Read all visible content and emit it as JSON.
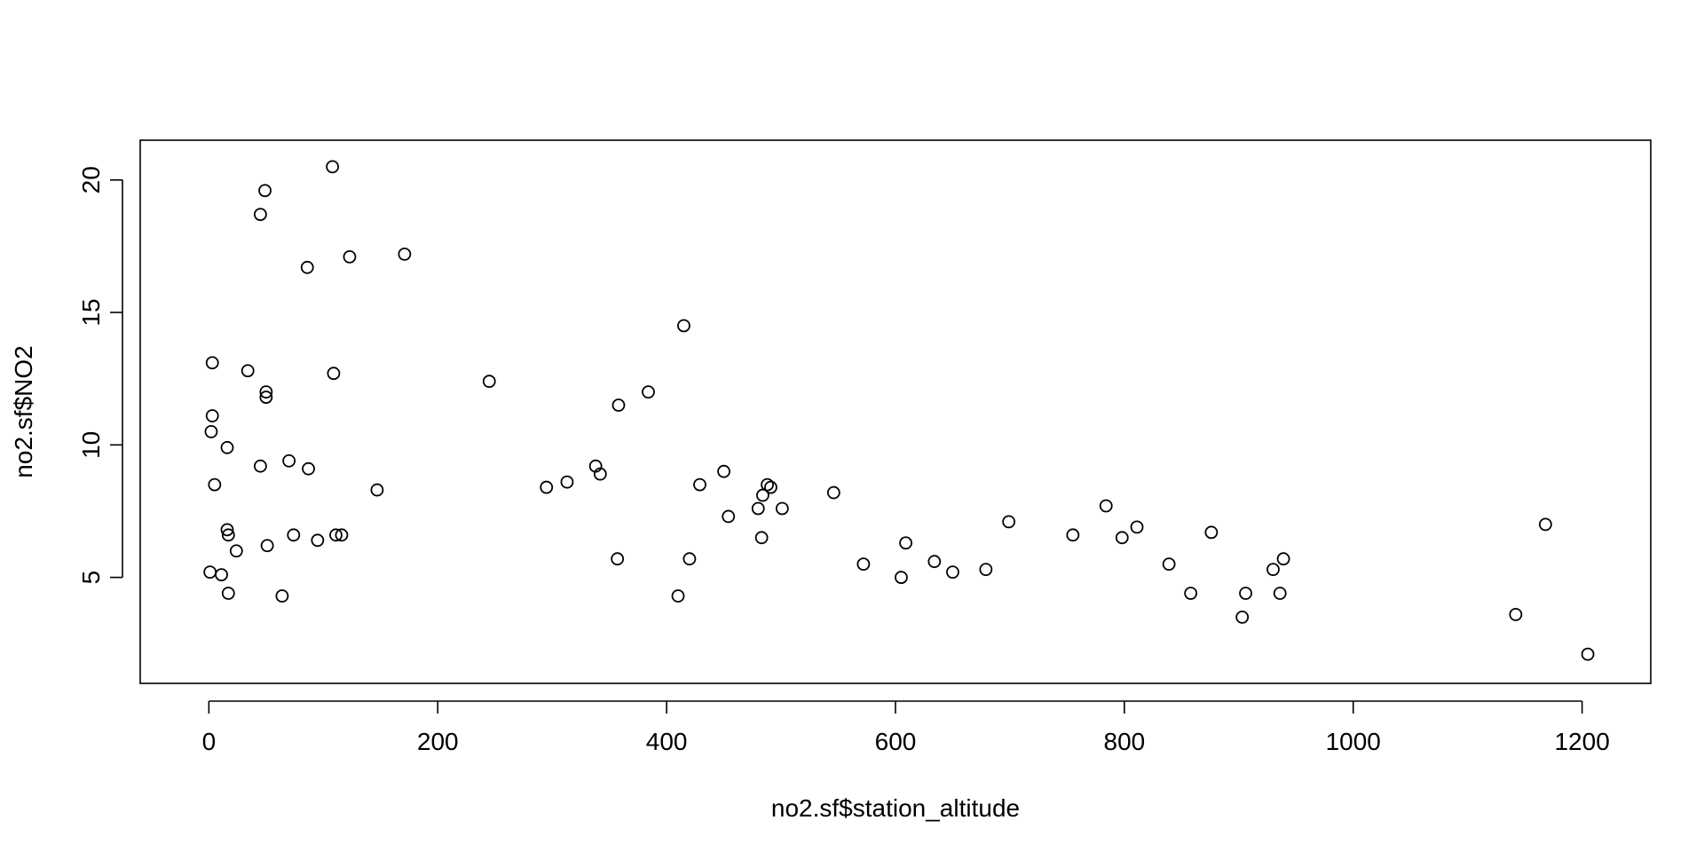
{
  "chart_data": {
    "type": "scatter",
    "title": "",
    "xlabel": "no2.sf$station_altitude",
    "ylabel": "no2.sf$NO2",
    "xlim": [
      -60,
      1260
    ],
    "ylim": [
      1.0,
      21.5
    ],
    "xticks": [
      "0",
      "200",
      "400",
      "600",
      "800",
      "1000",
      "1200"
    ],
    "yticks": [
      "5",
      "10",
      "15",
      "20"
    ],
    "grid": false,
    "legend": "none",
    "marker": "open-circle",
    "colors": {
      "points": "#000000",
      "axes": "#000000",
      "background": "#ffffff"
    },
    "points": [
      {
        "x": 1,
        "y": 5.2
      },
      {
        "x": 2,
        "y": 10.5
      },
      {
        "x": 3,
        "y": 13.1
      },
      {
        "x": 3,
        "y": 11.1
      },
      {
        "x": 5,
        "y": 8.5
      },
      {
        "x": 11,
        "y": 5.1
      },
      {
        "x": 16,
        "y": 6.8
      },
      {
        "x": 16,
        "y": 9.9
      },
      {
        "x": 17,
        "y": 6.6
      },
      {
        "x": 17,
        "y": 4.4
      },
      {
        "x": 24,
        "y": 6.0
      },
      {
        "x": 34,
        "y": 12.8
      },
      {
        "x": 45,
        "y": 18.7
      },
      {
        "x": 45,
        "y": 9.2
      },
      {
        "x": 49,
        "y": 19.6
      },
      {
        "x": 50,
        "y": 12.0
      },
      {
        "x": 50,
        "y": 11.8
      },
      {
        "x": 51,
        "y": 6.2
      },
      {
        "x": 64,
        "y": 4.3
      },
      {
        "x": 70,
        "y": 9.4
      },
      {
        "x": 74,
        "y": 6.6
      },
      {
        "x": 86,
        "y": 16.7
      },
      {
        "x": 87,
        "y": 9.1
      },
      {
        "x": 95,
        "y": 6.4
      },
      {
        "x": 108,
        "y": 20.5
      },
      {
        "x": 109,
        "y": 12.7
      },
      {
        "x": 111,
        "y": 6.6
      },
      {
        "x": 116,
        "y": 6.6
      },
      {
        "x": 123,
        "y": 17.1
      },
      {
        "x": 147,
        "y": 8.3
      },
      {
        "x": 171,
        "y": 17.2
      },
      {
        "x": 245,
        "y": 12.4
      },
      {
        "x": 295,
        "y": 8.4
      },
      {
        "x": 313,
        "y": 8.6
      },
      {
        "x": 338,
        "y": 9.2
      },
      {
        "x": 342,
        "y": 8.9
      },
      {
        "x": 357,
        "y": 5.7
      },
      {
        "x": 358,
        "y": 11.5
      },
      {
        "x": 384,
        "y": 12.0
      },
      {
        "x": 410,
        "y": 4.3
      },
      {
        "x": 415,
        "y": 14.5
      },
      {
        "x": 420,
        "y": 5.7
      },
      {
        "x": 429,
        "y": 8.5
      },
      {
        "x": 450,
        "y": 9.0
      },
      {
        "x": 454,
        "y": 7.3
      },
      {
        "x": 480,
        "y": 7.6
      },
      {
        "x": 483,
        "y": 6.5
      },
      {
        "x": 484,
        "y": 8.1
      },
      {
        "x": 488,
        "y": 8.5
      },
      {
        "x": 491,
        "y": 8.4
      },
      {
        "x": 501,
        "y": 7.6
      },
      {
        "x": 546,
        "y": 8.2
      },
      {
        "x": 572,
        "y": 5.5
      },
      {
        "x": 605,
        "y": 5.0
      },
      {
        "x": 609,
        "y": 6.3
      },
      {
        "x": 634,
        "y": 5.6
      },
      {
        "x": 650,
        "y": 5.2
      },
      {
        "x": 679,
        "y": 5.3
      },
      {
        "x": 699,
        "y": 7.1
      },
      {
        "x": 755,
        "y": 6.6
      },
      {
        "x": 784,
        "y": 7.7
      },
      {
        "x": 798,
        "y": 6.5
      },
      {
        "x": 811,
        "y": 6.9
      },
      {
        "x": 839,
        "y": 5.5
      },
      {
        "x": 858,
        "y": 4.4
      },
      {
        "x": 876,
        "y": 6.7
      },
      {
        "x": 903,
        "y": 3.5
      },
      {
        "x": 906,
        "y": 4.4
      },
      {
        "x": 930,
        "y": 5.3
      },
      {
        "x": 936,
        "y": 4.4
      },
      {
        "x": 939,
        "y": 5.7
      },
      {
        "x": 1142,
        "y": 3.6
      },
      {
        "x": 1168,
        "y": 7.0
      },
      {
        "x": 1205,
        "y": 2.1
      }
    ]
  }
}
